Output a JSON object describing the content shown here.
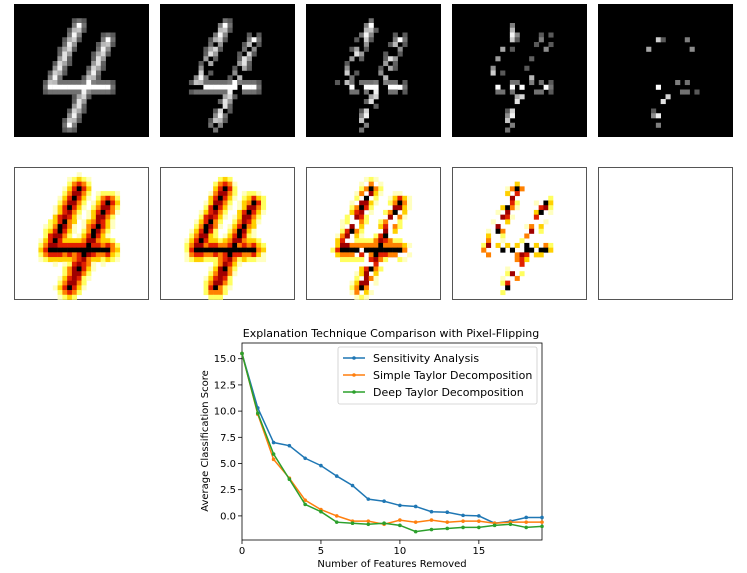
{
  "chart_data": {
    "type": "line",
    "title": "Explanation Technique Comparison with Pixel-Flipping",
    "xlabel": "Number of Features Removed",
    "ylabel": "Average Classification Score",
    "xlim": [
      0,
      19
    ],
    "ylim": [
      -2.3,
      16.5
    ],
    "xticks": [
      0,
      5,
      10,
      15
    ],
    "xtick_labels": [
      "0",
      "5",
      "10",
      "15"
    ],
    "yticks": [
      0.0,
      2.5,
      5.0,
      7.5,
      10.0,
      12.5,
      15.0
    ],
    "ytick_labels": [
      "0.0",
      "2.5",
      "5.0",
      "7.5",
      "10.0",
      "12.5",
      "15.0"
    ],
    "grid": false,
    "legend_position": "top-right",
    "x": [
      0,
      1,
      2,
      3,
      4,
      5,
      6,
      7,
      8,
      9,
      10,
      11,
      12,
      13,
      14,
      15,
      16,
      17,
      18,
      19
    ],
    "series": [
      {
        "name": "Sensitivity Analysis",
        "color": "#1f77b4",
        "values": [
          15.5,
          10.3,
          7.0,
          6.7,
          5.5,
          4.8,
          3.8,
          2.9,
          1.6,
          1.4,
          1.0,
          0.9,
          0.4,
          0.35,
          0.05,
          0.0,
          -0.7,
          -0.5,
          -0.15,
          -0.15
        ]
      },
      {
        "name": "Simple Taylor Decomposition",
        "color": "#ff7f0e",
        "values": [
          15.5,
          9.7,
          5.4,
          3.6,
          1.5,
          0.6,
          0.0,
          -0.5,
          -0.5,
          -0.8,
          -0.4,
          -0.6,
          -0.4,
          -0.6,
          -0.5,
          -0.5,
          -0.7,
          -0.6,
          -0.6,
          -0.6
        ]
      },
      {
        "name": "Deep Taylor Decomposition",
        "color": "#2ca02c",
        "values": [
          15.5,
          9.8,
          5.9,
          3.5,
          1.1,
          0.4,
          -0.6,
          -0.7,
          -0.8,
          -0.7,
          -0.9,
          -1.5,
          -1.3,
          -1.2,
          -1.1,
          -1.1,
          -0.9,
          -0.8,
          -1.1,
          -1.0
        ]
      }
    ]
  },
  "image_panels": {
    "digit_label": "4",
    "input_row": [
      "input-step-0",
      "input-step-1",
      "input-step-2",
      "input-step-3",
      "input-step-4"
    ],
    "heatmap_row": [
      "heatmap-step-0",
      "heatmap-step-1",
      "heatmap-step-2",
      "heatmap-step-3",
      "heatmap-step-4"
    ],
    "input_background": "#000000",
    "heatmap_colors": [
      "#ffffff",
      "#ffff80",
      "#ffd000",
      "#ff4000",
      "#c00000",
      "#000000"
    ]
  }
}
